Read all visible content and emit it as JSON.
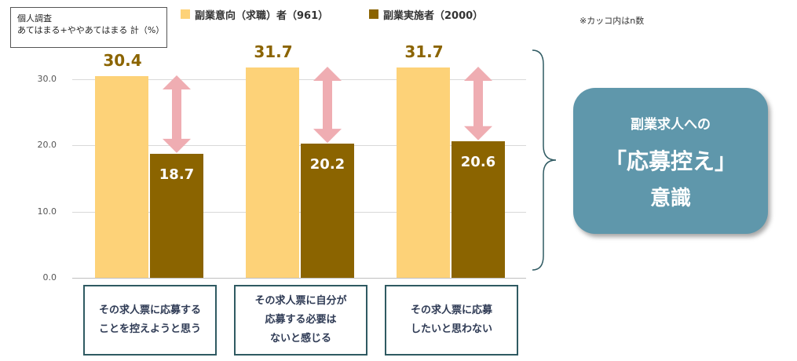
{
  "unit_box": {
    "line1": "個人調査",
    "line2": "あてはまる+ややあてはまる 計（%）"
  },
  "note": "※カッコ内はn数",
  "colors": {
    "series1": "#fdd278",
    "series2": "#8b6400",
    "arrow": "#efadb2",
    "callout": "#5f97ab",
    "box_border": "#2f5a62"
  },
  "chart_data": {
    "type": "bar",
    "categories": [
      "その求人票に応募することを控えようと思う",
      "その求人票に自分が応募する必要はないと感じる",
      "その求人票に応募したいと思わない"
    ],
    "category_lines": [
      [
        "その求人票に応募する",
        "ことを控えようと思う"
      ],
      [
        "その求人票に自分が",
        "応募する必要は",
        "ないと感じる"
      ],
      [
        "その求人票に応募",
        "したいと思わない"
      ]
    ],
    "series": [
      {
        "name": "副業意向（求職）者（961）",
        "values": [
          30.4,
          31.7,
          31.7
        ],
        "labels": [
          "30.4",
          "31.7",
          "31.7"
        ]
      },
      {
        "name": "副業実施者（2000）",
        "values": [
          18.7,
          20.2,
          20.6
        ],
        "labels": [
          "18.7",
          "20.2",
          "20.6"
        ]
      }
    ],
    "yticks": [
      0,
      10,
      20,
      30
    ],
    "ytick_labels": [
      "0.0",
      "10.0",
      "20.0",
      "30.0"
    ],
    "ylim": [
      0,
      35
    ],
    "legend": "top"
  },
  "callout": {
    "line1": "副業求人への",
    "line2": "「応募控え」",
    "line3": "意識"
  }
}
